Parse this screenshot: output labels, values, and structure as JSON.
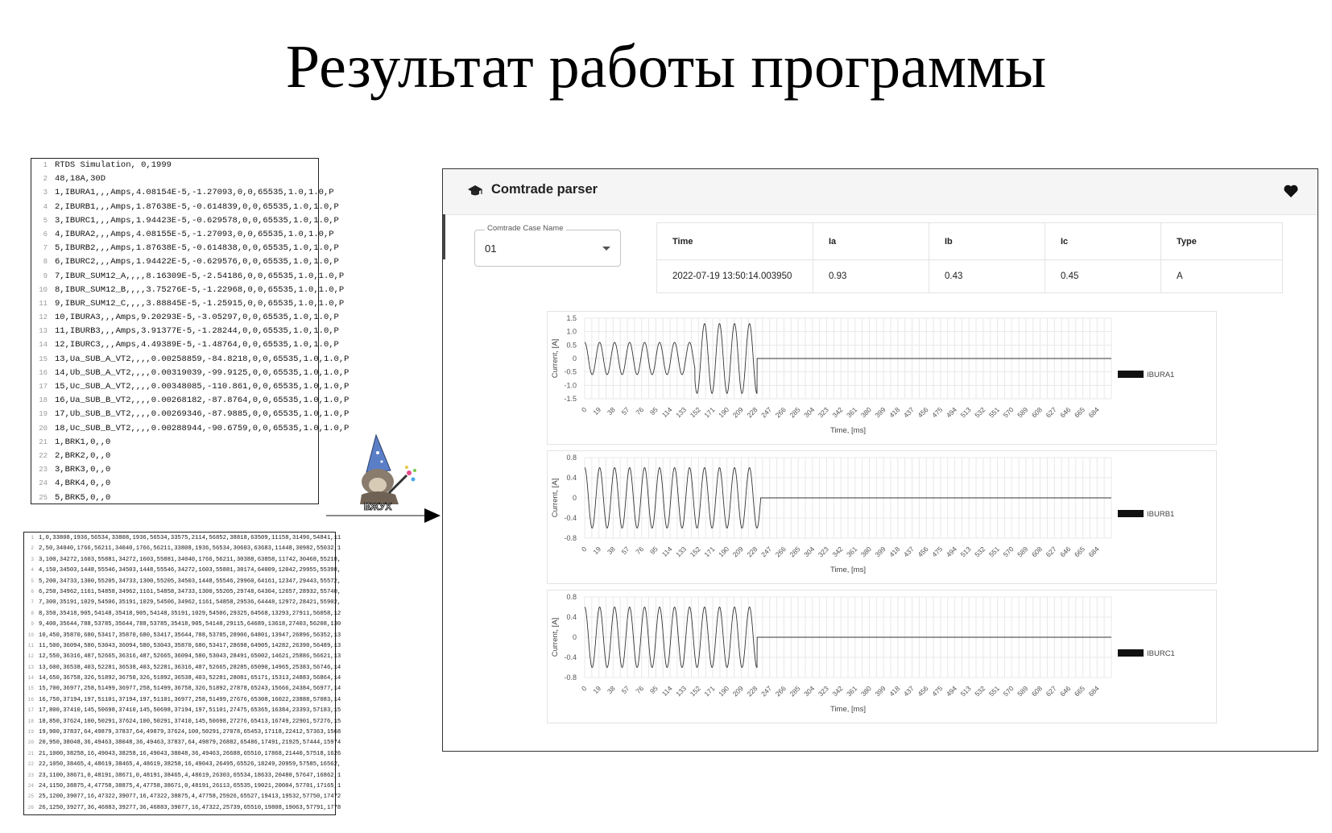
{
  "slide": {
    "title": "Результат работы программы"
  },
  "cfg_file": {
    "lines": [
      "RTDS Simulation, 0,1999",
      "48,18A,30D",
      "1,IBURA1,,,Amps,4.08154E-5,-1.27093,0,0,65535,1.0,1.0,P",
      "2,IBURB1,,,Amps,1.87638E-5,-0.614839,0,0,65535,1.0,1.0,P",
      "3,IBURC1,,,Amps,1.94423E-5,-0.629578,0,0,65535,1.0,1.0,P",
      "4,IBURA2,,,Amps,4.08155E-5,-1.27093,0,0,65535,1.0,1.0,P",
      "5,IBURB2,,,Amps,1.87638E-5,-0.614838,0,0,65535,1.0,1.0,P",
      "6,IBURC2,,,Amps,1.94422E-5,-0.629576,0,0,65535,1.0,1.0,P",
      "7,IBUR_SUM12_A,,,,8.16309E-5,-2.54186,0,0,65535,1.0,1.0,P",
      "8,IBUR_SUM12_B,,,,3.75276E-5,-1.22968,0,0,65535,1.0,1.0,P",
      "9,IBUR_SUM12_C,,,,3.88845E-5,-1.25915,0,0,65535,1.0,1.0,P",
      "10,IBURA3,,,Amps,9.20293E-5,-3.05297,0,0,65535,1.0,1.0,P",
      "11,IBURB3,,,Amps,3.91377E-5,-1.28244,0,0,65535,1.0,1.0,P",
      "12,IBURC3,,,Amps,4.49389E-5,-1.48764,0,0,65535,1.0,1.0,P",
      "13,Ua_SUB_A_VT2,,,,0.00258859,-84.8218,0,0,65535,1.0,1.0,P",
      "14,Ub_SUB_A_VT2,,,,0.00319039,-99.9125,0,0,65535,1.0,1.0,P",
      "15,Uc_SUB_A_VT2,,,,0.00348085,-110.861,0,0,65535,1.0,1.0,P",
      "16,Ua_SUB_B_VT2,,,,0.00268182,-87.8764,0,0,65535,1.0,1.0,P",
      "17,Ub_SUB_B_VT2,,,,0.00269346,-87.9885,0,0,65535,1.0,1.0,P",
      "18,Uc_SUB_B_VT2,,,,0.00288944,-90.6759,0,0,65535,1.0,1.0,P",
      "1,BRK1,0,,0",
      "2,BRK2,0,,0",
      "3,BRK3,0,,0",
      "4,BRK4,0,,0",
      "5,BRK5,0,,0"
    ],
    "line_numbers": [
      "1",
      "2",
      "3",
      "4",
      "5",
      "6",
      "7",
      "8",
      "9",
      "10",
      "11",
      "12",
      "13",
      "14",
      "15",
      "16",
      "17",
      "18",
      "19",
      "20",
      "21",
      "22",
      "23",
      "24",
      "25"
    ]
  },
  "dat_file": {
    "lines": [
      "1,0,33808,1936,56534,33808,1936,56534,33575,2114,56852,38818,63509,11158,31496,54841,11",
      "2,50,34040,1766,56211,34040,1766,56211,33808,1936,56534,30603,63683,11448,30982,55032,1",
      "3,100,34272,1603,55881,34272,1603,55881,34040,1766,56211,30388,63858,11742,30468,55218,",
      "4,150,34503,1448,55546,34503,1448,55546,34272,1603,55881,30174,64009,12042,29955,55398,",
      "5,200,34733,1300,55205,34733,1300,55205,34503,1448,55546,29960,64161,12347,29443,55572,",
      "6,250,34962,1161,54858,34962,1161,54858,34733,1300,55205,29748,64304,12657,28932,55740,",
      "7,300,35191,1029,54506,35191,1029,54506,34962,1161,54858,29536,64448,12972,28421,55902,",
      "8,350,35418,905,54148,35418,905,54148,35191,1029,54506,29325,64568,13293,27911,56058,12",
      "9,400,35644,788,53785,35644,788,53785,35418,905,54148,29115,64689,13618,27403,56208,130",
      "10,450,35870,680,53417,35870,680,53417,35644,788,53785,28906,64801,13947,26896,56352,13",
      "11,500,36094,580,53043,36094,580,53043,35870,680,53417,28698,64905,14282,26390,56489,13",
      "12,550,36316,487,52665,36316,487,52665,36094,580,53043,28491,65002,14621,25886,56621,13",
      "13,600,36538,403,52281,36538,403,52281,36316,487,52665,28285,65090,14965,25383,56746,14",
      "14,650,36758,326,51892,36758,326,51892,36538,403,52281,28081,65171,15313,24883,56864,14",
      "15,700,36977,258,51499,36977,258,51499,36758,326,51892,27878,65243,15666,24384,56977,14",
      "16,750,37194,197,51101,37194,197,51101,36977,258,51499,27676,65308,16022,23888,57083,14",
      "17,800,37410,145,50698,37410,145,50698,37194,197,51101,27475,65365,16384,23393,57183,15",
      "18,850,37624,100,50291,37624,100,50291,37410,145,50698,27276,65413,16749,22901,57276,15",
      "19,900,37837,64,49879,37837,64,49879,37624,100,50291,27078,65453,17118,22412,57363,1568",
      "20,950,38048,36,49463,38048,36,49463,37837,64,49879,26882,65486,17491,21925,57444,15974",
      "21,1000,38258,16,49043,38258,16,49043,38048,36,49463,26688,65510,17868,21440,57518,1626",
      "22,1050,38465,4,48619,38465,4,48619,38258,16,49043,26495,65526,18249,20959,57585,16562,",
      "23,1100,38671,0,48191,38671,0,48191,38465,4,48619,26303,65534,18633,20480,57647,16862,1",
      "24,1150,38875,4,47758,38875,4,47758,38671,0,48191,26113,65535,19021,20004,57701,17165,1",
      "25,1200,39077,16,47322,39077,16,47322,38875,4,47758,25926,65527,19413,19532,57750,17472",
      "26,1250,39277,36,46883,39277,36,46883,39077,16,47322,25739,65510,19808,19063,57791,1778"
    ],
    "line_numbers": [
      "1",
      "2",
      "3",
      "4",
      "5",
      "6",
      "7",
      "8",
      "9",
      "10",
      "11",
      "12",
      "13",
      "14",
      "15",
      "16",
      "17",
      "18",
      "19",
      "20",
      "21",
      "22",
      "23",
      "24",
      "25",
      "26"
    ]
  },
  "mascot": {
    "caption": "ВЖУХ"
  },
  "app": {
    "title": "Comtrade parser",
    "title_icon": "graduation-cap-icon",
    "favorite_icon": "heart-icon",
    "case_select": {
      "label": "Comtrade Case Name",
      "value": "01"
    },
    "table": {
      "headers": [
        "Time",
        "Ia",
        "Ib",
        "Ic",
        "Type"
      ],
      "rows": [
        [
          "2022-07-19 13:50:14.003950",
          "0.93",
          "0.43",
          "0.45",
          "A"
        ]
      ]
    }
  },
  "colors": {
    "waveform": "#333333",
    "grid": "#e8e8e8",
    "legend_swatch": "#111111"
  },
  "chart_data": [
    {
      "type": "line",
      "xlabel": "Time, [ms]",
      "ylabel": "Current, [A]",
      "x_ticks": [
        "0",
        "19",
        "38",
        "57",
        "76",
        "95",
        "114",
        "133",
        "152",
        "171",
        "190",
        "209",
        "228",
        "247",
        "266",
        "285",
        "304",
        "323",
        "342",
        "361",
        "380",
        "399",
        "418",
        "437",
        "456",
        "475",
        "494",
        "513",
        "532",
        "551",
        "570",
        "589",
        "608",
        "627",
        "646",
        "665",
        "684"
      ],
      "y_ticks": [
        "1.5",
        "1.0",
        "0.5",
        "0",
        "-0.5",
        "-1.0",
        "-1.5"
      ],
      "ylim": [
        -1.5,
        1.5
      ],
      "xlim": [
        0,
        703
      ],
      "grid": true,
      "legend_position": "right",
      "series": [
        {
          "name": "IBURA1",
          "frequency_hz": 50,
          "segments": [
            {
              "t_start": 0,
              "t_end": 147,
              "amplitude": 0.6
            },
            {
              "t_start": 147,
              "t_end": 230,
              "amplitude": 1.3
            },
            {
              "t_start": 230,
              "t_end": 703,
              "amplitude": 0
            }
          ]
        }
      ]
    },
    {
      "type": "line",
      "xlabel": "Time, [ms]",
      "ylabel": "Current, [A]",
      "x_ticks": [
        "0",
        "19",
        "38",
        "57",
        "76",
        "95",
        "114",
        "133",
        "152",
        "171",
        "190",
        "209",
        "228",
        "247",
        "266",
        "285",
        "304",
        "323",
        "342",
        "361",
        "380",
        "399",
        "418",
        "437",
        "456",
        "475",
        "494",
        "513",
        "532",
        "551",
        "570",
        "589",
        "608",
        "627",
        "646",
        "665",
        "684"
      ],
      "y_ticks": [
        "0.8",
        "0.4",
        "0",
        "-0.4",
        "-0.8"
      ],
      "ylim": [
        -0.8,
        0.8
      ],
      "xlim": [
        0,
        703
      ],
      "grid": true,
      "legend_position": "right",
      "series": [
        {
          "name": "IBURB1",
          "frequency_hz": 50,
          "segments": [
            {
              "t_start": 0,
              "t_end": 235,
              "amplitude": 0.6
            },
            {
              "t_start": 235,
              "t_end": 703,
              "amplitude": 0
            }
          ]
        }
      ]
    },
    {
      "type": "line",
      "xlabel": "Time, [ms]",
      "ylabel": "Current, [A]",
      "x_ticks": [
        "0",
        "19",
        "38",
        "57",
        "76",
        "95",
        "114",
        "133",
        "152",
        "171",
        "190",
        "209",
        "228",
        "247",
        "266",
        "285",
        "304",
        "323",
        "342",
        "361",
        "380",
        "399",
        "418",
        "437",
        "456",
        "475",
        "494",
        "513",
        "532",
        "551",
        "570",
        "589",
        "608",
        "627",
        "646",
        "665",
        "684"
      ],
      "y_ticks": [
        "0.8",
        "0.4",
        "0",
        "-0.4",
        "-0.8"
      ],
      "ylim": [
        -0.8,
        0.8
      ],
      "xlim": [
        0,
        703
      ],
      "grid": true,
      "legend_position": "right",
      "series": [
        {
          "name": "IBURC1",
          "frequency_hz": 50,
          "segments": [
            {
              "t_start": 0,
              "t_end": 230,
              "amplitude": 0.6
            },
            {
              "t_start": 230,
              "t_end": 703,
              "amplitude": 0
            }
          ]
        }
      ]
    }
  ]
}
